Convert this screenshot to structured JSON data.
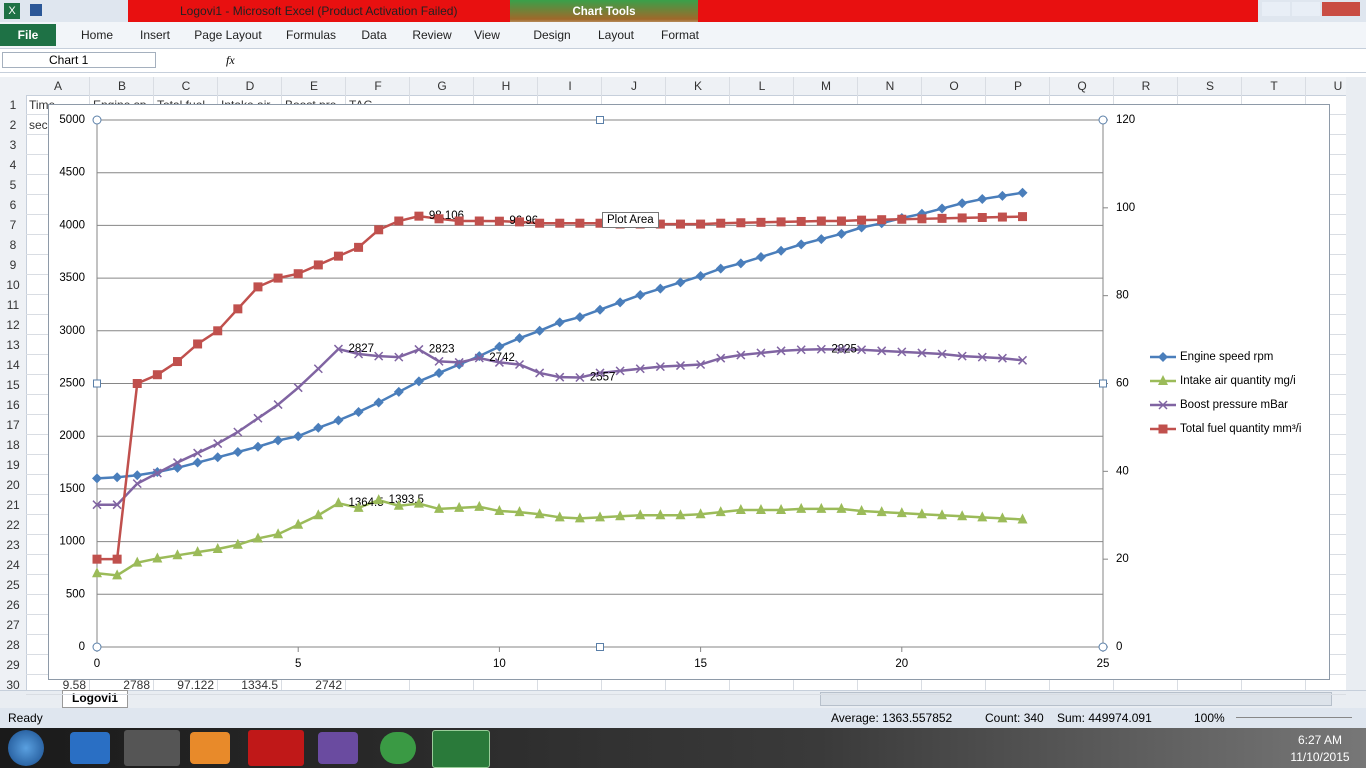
{
  "window": {
    "title": "Logovi1  -  Microsoft Excel (Product Activation Failed)",
    "context_tab": "Chart Tools",
    "tabs": [
      "File",
      "Home",
      "Insert",
      "Page Layout",
      "Formulas",
      "Data",
      "Review",
      "View",
      "Design",
      "Layout",
      "Format"
    ],
    "name_box": "Chart 1",
    "fx": "fx"
  },
  "sheet": {
    "columns": [
      "A",
      "B",
      "C",
      "D",
      "E",
      "F",
      "G",
      "H",
      "I",
      "J",
      "K",
      "L",
      "M",
      "N",
      "O",
      "P",
      "Q",
      "R",
      "S",
      "T",
      "U"
    ],
    "rows": [
      "1",
      "2",
      "3",
      "4",
      "5",
      "6",
      "7",
      "8",
      "9",
      "10",
      "11",
      "12",
      "13",
      "14",
      "15",
      "16",
      "17",
      "18",
      "19",
      "20",
      "21",
      "22",
      "23",
      "24",
      "25",
      "26",
      "27",
      "28",
      "29",
      "30"
    ],
    "row1": [
      "Time",
      "Engine sp",
      "Total fuel",
      "Intake air",
      "Boost pre",
      "TAG"
    ],
    "row2": [
      "sec"
    ],
    "row30": [
      "9.58",
      "2788",
      "97.122",
      "1334.5",
      "2742"
    ],
    "tab": "Logovi1"
  },
  "status": {
    "ready": "Ready",
    "average": "Average: 1363.557852",
    "count": "Count: 340",
    "sum": "Sum: 449974.091",
    "zoom": "100%"
  },
  "taskbar": {
    "time": "6:27 AM",
    "date": "11/10/2015"
  },
  "tooltip": "Plot Area",
  "chart_data": {
    "type": "line",
    "x": [
      0,
      0.5,
      1,
      1.5,
      2,
      2.5,
      3,
      3.5,
      4,
      4.5,
      5,
      5.5,
      6,
      6.5,
      7,
      7.5,
      8,
      8.5,
      9,
      9.5,
      10,
      10.5,
      11,
      11.5,
      12,
      12.5,
      13,
      13.5,
      14,
      14.5,
      15,
      15.5,
      16,
      16.5,
      17,
      17.5,
      18,
      18.5,
      19,
      19.5,
      20,
      20.5,
      21,
      21.5,
      22,
      22.5,
      23
    ],
    "xlim": [
      0,
      25
    ],
    "xticks": [
      0,
      5,
      10,
      15,
      20,
      25
    ],
    "ylim": [
      0,
      5000
    ],
    "yticks": [
      0,
      500,
      1000,
      1500,
      2000,
      2500,
      3000,
      3500,
      4000,
      4500,
      5000
    ],
    "y2lim": [
      0,
      120
    ],
    "y2ticks": [
      0,
      20,
      40,
      60,
      80,
      100,
      120
    ],
    "grid": true,
    "series": [
      {
        "name": "Engine speed rpm",
        "color": "#4a7ebb",
        "marker": "diamond",
        "values": [
          1600,
          1610,
          1630,
          1660,
          1700,
          1750,
          1800,
          1850,
          1900,
          1960,
          2000,
          2080,
          2150,
          2230,
          2320,
          2420,
          2520,
          2600,
          2680,
          2760,
          2850,
          2930,
          3000,
          3080,
          3130,
          3200,
          3270,
          3340,
          3400,
          3460,
          3520,
          3590,
          3640,
          3700,
          3760,
          3820,
          3870,
          3920,
          3980,
          4020,
          4070,
          4110,
          4160,
          4210,
          4250,
          4280,
          4310
        ]
      },
      {
        "name": "Intake air quantity mg/i",
        "color": "#9bbb59",
        "marker": "triangle",
        "values": [
          700,
          680,
          800,
          840,
          870,
          900,
          930,
          970,
          1030,
          1070,
          1160,
          1250,
          1364.5,
          1320,
          1393.5,
          1340,
          1360,
          1310,
          1320,
          1330,
          1290,
          1280,
          1260,
          1230,
          1220,
          1230,
          1240,
          1250,
          1250,
          1250,
          1260,
          1280,
          1300,
          1300,
          1300,
          1310,
          1310,
          1310,
          1290,
          1280,
          1270,
          1260,
          1250,
          1240,
          1230,
          1220,
          1210
        ],
        "value_labels": [
          null,
          null,
          null,
          null,
          null,
          null,
          null,
          null,
          null,
          null,
          null,
          null,
          "1364.5",
          null,
          "1393.5",
          null,
          null,
          null,
          null,
          null,
          null,
          null,
          null,
          null,
          null,
          null,
          null,
          null,
          null,
          null,
          null,
          null,
          null,
          null,
          null,
          null,
          null,
          null,
          null,
          null,
          null,
          null,
          null,
          null,
          null,
          null,
          null
        ]
      },
      {
        "name": "Boost pressure mBar",
        "color": "#8064a2",
        "marker": "x",
        "values": [
          1350,
          1350,
          1550,
          1650,
          1750,
          1840,
          1930,
          2040,
          2170,
          2300,
          2460,
          2640,
          2827,
          2780,
          2760,
          2750,
          2823,
          2710,
          2700,
          2742,
          2700,
          2680,
          2600,
          2560,
          2557,
          2600,
          2620,
          2640,
          2660,
          2670,
          2680,
          2740,
          2770,
          2790,
          2810,
          2820,
          2825,
          2822,
          2820,
          2810,
          2800,
          2790,
          2780,
          2760,
          2750,
          2740,
          2720
        ],
        "value_labels": [
          null,
          null,
          null,
          null,
          null,
          null,
          null,
          null,
          null,
          null,
          null,
          null,
          "2827",
          null,
          null,
          null,
          "2823",
          null,
          null,
          "2742",
          null,
          null,
          null,
          null,
          "2557",
          null,
          null,
          null,
          null,
          null,
          null,
          null,
          null,
          null,
          null,
          null,
          "2825",
          null,
          null,
          null,
          null,
          null,
          null,
          null,
          null,
          null,
          null
        ]
      },
      {
        "name": "Total fuel quantity mm³/i",
        "color": "#c0504d",
        "marker": "square",
        "axis": "y2",
        "values": [
          20,
          20,
          60,
          62,
          65,
          69,
          72,
          77,
          82,
          84,
          85,
          87,
          89,
          91,
          95,
          97,
          98.106,
          97.5,
          97,
          97,
          96.96,
          96.8,
          96.5,
          96.5,
          96.5,
          96.5,
          96.3,
          96.3,
          96.3,
          96.3,
          96.3,
          96.5,
          96.6,
          96.7,
          96.8,
          96.9,
          97,
          97,
          97.2,
          97.3,
          97.4,
          97.5,
          97.6,
          97.7,
          97.8,
          97.9,
          98
        ],
        "value_labels": [
          null,
          null,
          null,
          null,
          null,
          null,
          null,
          null,
          null,
          null,
          null,
          null,
          null,
          null,
          null,
          null,
          "98.106",
          null,
          null,
          null,
          "96.96",
          null,
          null,
          null,
          null,
          null,
          null,
          null,
          null,
          null,
          null,
          null,
          null,
          null,
          null,
          null,
          null,
          null,
          null,
          null,
          null,
          null,
          null,
          null,
          null,
          null,
          null
        ]
      }
    ]
  }
}
